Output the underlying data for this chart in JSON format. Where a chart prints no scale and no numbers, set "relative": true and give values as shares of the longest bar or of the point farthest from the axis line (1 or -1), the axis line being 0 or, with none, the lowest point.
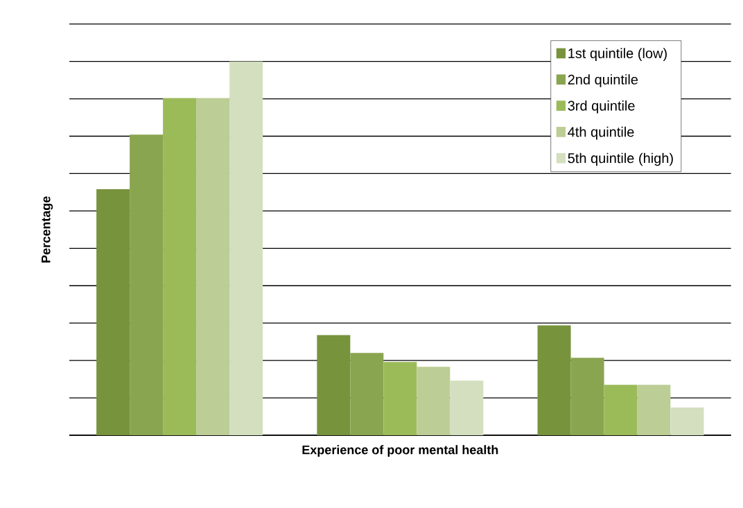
{
  "chart_data": {
    "type": "bar",
    "xlabel": "Experience of poor mental health",
    "ylabel": "Percentage",
    "relative": true,
    "grid": "y",
    "legend": "top right",
    "categories": [
      null,
      null,
      null
    ],
    "series": [
      {
        "name": "1st quintile (low)",
        "color": "#77933c",
        "values": [
          0.658,
          0.268,
          0.294
        ]
      },
      {
        "name": "2nd quintile",
        "color": "#8aa550",
        "values": [
          0.804,
          0.22,
          0.207
        ]
      },
      {
        "name": "3rd quintile",
        "color": "#9bbb59",
        "values": [
          0.902,
          0.196,
          0.135
        ]
      },
      {
        "name": "4th quintile",
        "color": "#bccd95",
        "values": [
          0.902,
          0.183,
          0.135
        ]
      },
      {
        "name": "5th quintile (high)",
        "color": "#d3dfbf",
        "values": [
          1,
          0.146,
          0.074
        ]
      }
    ]
  }
}
